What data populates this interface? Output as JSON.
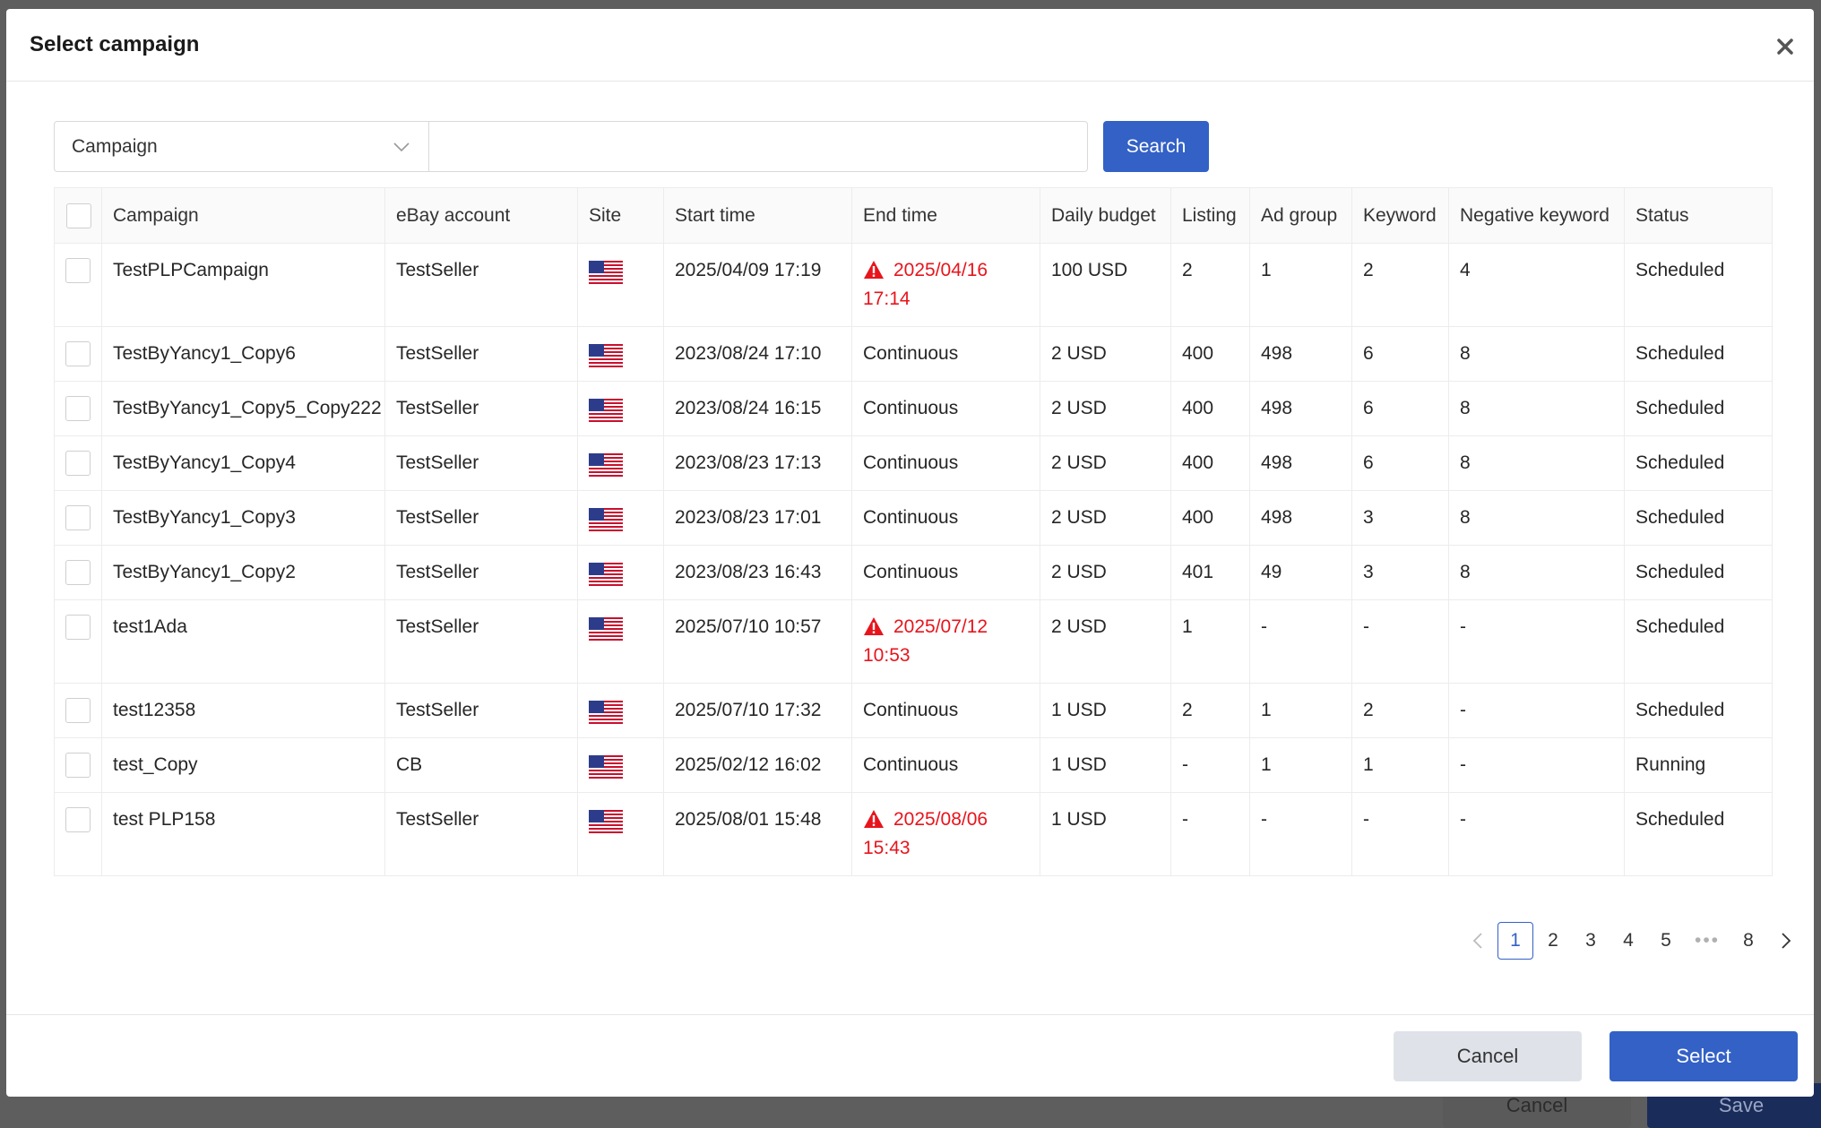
{
  "background": {
    "cancel_label": "Cancel",
    "save_label": "Save"
  },
  "modal": {
    "title": "Select campaign"
  },
  "filter": {
    "field_select_value": "Campaign",
    "search_input_value": "",
    "search_button_label": "Search"
  },
  "table": {
    "columns": [
      "Campaign",
      "eBay account",
      "Site",
      "Start time",
      "End time",
      "Daily budget",
      "Listing",
      "Ad group",
      "Keyword",
      "Negative keyword",
      "Status"
    ],
    "rows": [
      {
        "campaign": "TestPLPCampaign",
        "account": "TestSeller",
        "site": "us-flag",
        "start_date": "2025/04/09 17:19",
        "end_date": "2025/04/16",
        "end_time": "17:14",
        "end_warning": true,
        "budget": "100 USD",
        "listing": "2",
        "ad_group": "1",
        "keyword": "2",
        "negative_keyword": "4",
        "status": "Scheduled"
      },
      {
        "campaign": "TestByYancy1_Copy6",
        "account": "TestSeller",
        "site": "us-flag",
        "start_date": "2023/08/24 17:10",
        "end_date": "Continuous",
        "end_time": "",
        "end_warning": false,
        "budget": "2 USD",
        "listing": "400",
        "ad_group": "498",
        "keyword": "6",
        "negative_keyword": "8",
        "status": "Scheduled"
      },
      {
        "campaign": "TestByYancy1_Copy5_Copy222",
        "account": "TestSeller",
        "site": "us-flag",
        "start_date": "2023/08/24 16:15",
        "end_date": "Continuous",
        "end_time": "",
        "end_warning": false,
        "budget": "2 USD",
        "listing": "400",
        "ad_group": "498",
        "keyword": "6",
        "negative_keyword": "8",
        "status": "Scheduled"
      },
      {
        "campaign": "TestByYancy1_Copy4",
        "account": "TestSeller",
        "site": "us-flag",
        "start_date": "2023/08/23 17:13",
        "end_date": "Continuous",
        "end_time": "",
        "end_warning": false,
        "budget": "2 USD",
        "listing": "400",
        "ad_group": "498",
        "keyword": "6",
        "negative_keyword": "8",
        "status": "Scheduled"
      },
      {
        "campaign": "TestByYancy1_Copy3",
        "account": "TestSeller",
        "site": "us-flag",
        "start_date": "2023/08/23 17:01",
        "end_date": "Continuous",
        "end_time": "",
        "end_warning": false,
        "budget": "2 USD",
        "listing": "400",
        "ad_group": "498",
        "keyword": "3",
        "negative_keyword": "8",
        "status": "Scheduled"
      },
      {
        "campaign": "TestByYancy1_Copy2",
        "account": "TestSeller",
        "site": "us-flag",
        "start_date": "2023/08/23 16:43",
        "end_date": "Continuous",
        "end_time": "",
        "end_warning": false,
        "budget": "2 USD",
        "listing": "401",
        "ad_group": "49",
        "keyword": "3",
        "negative_keyword": "8",
        "status": "Scheduled"
      },
      {
        "campaign": "test1Ada",
        "account": "TestSeller",
        "site": "us-flag",
        "start_date": "2025/07/10 10:57",
        "end_date": "2025/07/12",
        "end_time": "10:53",
        "end_warning": true,
        "budget": "2 USD",
        "listing": "1",
        "ad_group": "-",
        "keyword": "-",
        "negative_keyword": "-",
        "status": "Scheduled"
      },
      {
        "campaign": "test12358",
        "account": "TestSeller",
        "site": "us-flag",
        "start_date": "2025/07/10 17:32",
        "end_date": "Continuous",
        "end_time": "",
        "end_warning": false,
        "budget": "1 USD",
        "listing": "2",
        "ad_group": "1",
        "keyword": "2",
        "negative_keyword": "-",
        "status": "Scheduled"
      },
      {
        "campaign": "test_Copy",
        "account": "CB",
        "site": "us-flag",
        "start_date": "2025/02/12 16:02",
        "end_date": "Continuous",
        "end_time": "",
        "end_warning": false,
        "budget": "1 USD",
        "listing": "-",
        "ad_group": "1",
        "keyword": "1",
        "negative_keyword": "-",
        "status": "Running"
      },
      {
        "campaign": "test PLP158",
        "account": "TestSeller",
        "site": "us-flag",
        "start_date": "2025/08/01 15:48",
        "end_date": "2025/08/06",
        "end_time": "15:43",
        "end_warning": true,
        "budget": "1 USD",
        "listing": "-",
        "ad_group": "-",
        "keyword": "-",
        "negative_keyword": "-",
        "status": "Scheduled"
      }
    ]
  },
  "pagination": {
    "pages": [
      "1",
      "2",
      "3",
      "4",
      "5",
      "8"
    ],
    "current": "1",
    "ellipsis": "•••"
  },
  "footer": {
    "cancel_label": "Cancel",
    "select_label": "Select"
  },
  "colors": {
    "primary": "#3361c6",
    "warning": "#e8141c",
    "cancel_bg": "#dfe2e8"
  }
}
